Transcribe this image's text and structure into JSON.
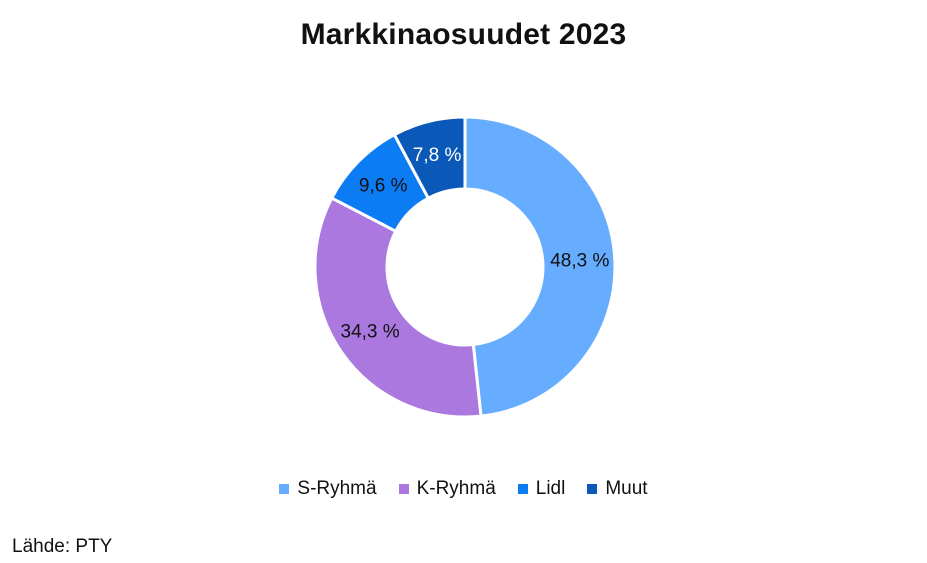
{
  "chart_data": {
    "type": "pie",
    "title": "Markkinaosuudet 2023",
    "categories": [
      "S-Ryhmä",
      "K-Ryhmä",
      "Lidl",
      "Muut"
    ],
    "values": [
      48.3,
      34.3,
      9.6,
      7.8
    ],
    "value_labels": [
      "48,3 %",
      "34,3 %",
      "9,6 %",
      "7,8 %"
    ],
    "colors": [
      "#66adff",
      "#ab78e0",
      "#0c7cf5",
      "#0a58b8"
    ],
    "label_colors": [
      "#111111",
      "#111111",
      "#111111",
      "#ffffff"
    ],
    "donut": true,
    "legend_position": "bottom"
  },
  "source": "Lähde: PTY"
}
